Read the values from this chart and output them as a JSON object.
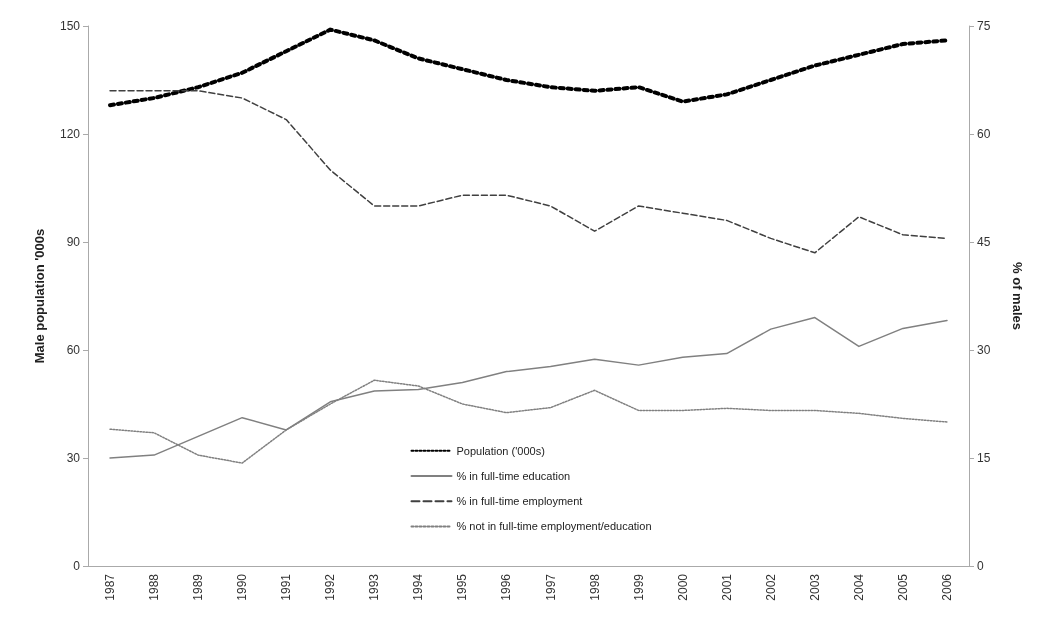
{
  "chart_data": {
    "type": "line",
    "ylabel": "Male population '000s",
    "y2label": "% of males",
    "categories": [
      "1987",
      "1988",
      "1989",
      "1990",
      "1991",
      "1992",
      "1993",
      "1994",
      "1995",
      "1996",
      "1997",
      "1998",
      "1999",
      "2000",
      "2001",
      "2002",
      "2003",
      "2004",
      "2005",
      "2006"
    ],
    "ylim": [
      0,
      150
    ],
    "yticks": [
      0,
      30,
      60,
      90,
      120,
      150
    ],
    "y2lim": [
      0,
      75
    ],
    "y2ticks": [
      0,
      15,
      30,
      45,
      60,
      75
    ],
    "grid": false,
    "legend": "bottom",
    "marker": "none",
    "series": [
      {
        "name": "Population ('000s)",
        "color": "#000000",
        "line_style": "dotted",
        "values": [
          128,
          130,
          133,
          137,
          143,
          149,
          146,
          141,
          138,
          135,
          133,
          132,
          133,
          129,
          131,
          135,
          139,
          142,
          145,
          146
        ]
      },
      {
        "name": "% in full-time education",
        "color": "#808080",
        "line_style": "solid",
        "axis": "y2",
        "values": [
          15,
          15.4,
          18,
          20.6,
          18.9,
          22.8,
          24.3,
          24.5,
          25.5,
          27,
          27.7,
          28.7,
          27.9,
          29,
          29.5,
          32.9,
          34.5,
          30.5,
          33,
          34.1
        ]
      },
      {
        "name": "% in full-time employment",
        "color": "#404040",
        "line_style": "dashed",
        "axis": "y2",
        "values": [
          66,
          66,
          66,
          65,
          62,
          55,
          50,
          50,
          51.5,
          51.5,
          50,
          46.5,
          50,
          49,
          48,
          45.5,
          43.5,
          48.5,
          46,
          45.5
        ]
      },
      {
        "name": "% not in full-time employment/education",
        "color": "#808080",
        "line_style": "dotted",
        "axis": "y2",
        "values": [
          19,
          18.5,
          15.4,
          14.3,
          18.9,
          22.5,
          25.8,
          25,
          22.5,
          21.3,
          22,
          24.4,
          21.6,
          21.6,
          21.9,
          21.6,
          21.6,
          21.2,
          20.5,
          20
        ]
      }
    ]
  }
}
